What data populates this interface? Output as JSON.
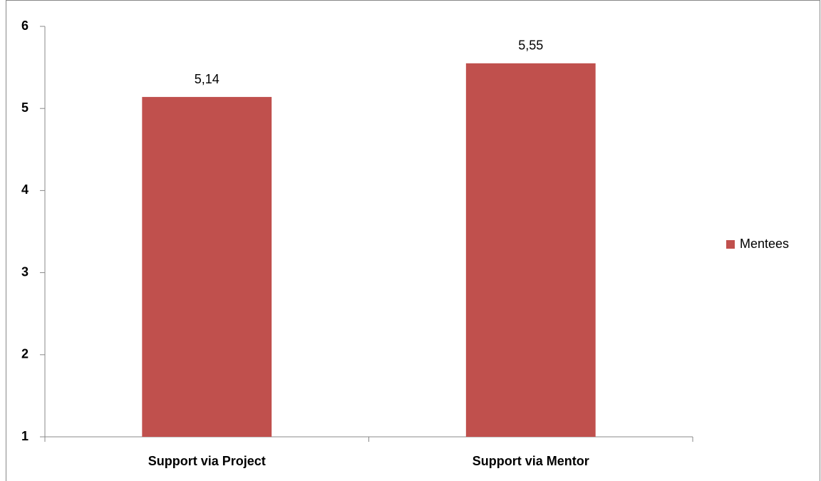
{
  "chart_data": {
    "type": "bar",
    "categories": [
      "Support via Project",
      "Support via Mentor"
    ],
    "series": [
      {
        "name": "Mentees",
        "color": "#c0504d",
        "values": [
          5.14,
          5.55
        ],
        "value_labels": [
          "5,14",
          "5,55"
        ]
      }
    ],
    "ylim": [
      1,
      6
    ],
    "yticks": [
      1,
      2,
      3,
      4,
      5,
      6
    ],
    "grid": false,
    "legend": "right"
  }
}
